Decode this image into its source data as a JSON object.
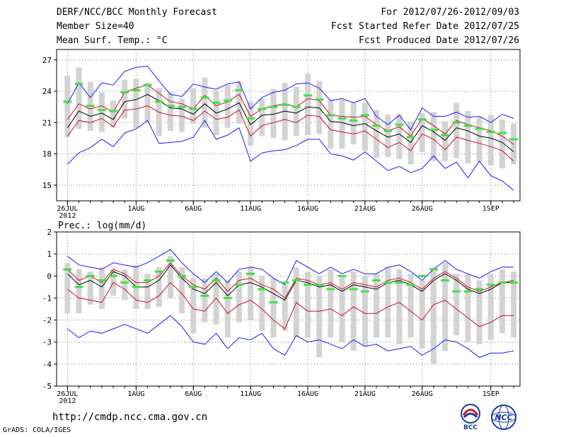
{
  "header": {
    "title": "DERF/NCC/BCC Monthly Forecast",
    "member_size": "Member Size=40",
    "variable": "Mean Surf. Temp.: °C",
    "period": "For 2012/07/26-2012/09/03",
    "started": "Fcst Started Refer Date 2012/07/25",
    "produced": "Fcst Produced Date 2012/07/26"
  },
  "footer": {
    "url": "http://cmdp.ncc.cma.gov.cn",
    "credit": "GrADS: COLA/IGES",
    "logo_bcc_text": "BCC",
    "logo_ncc_text": "NCC"
  },
  "colors": {
    "box": "#d3d3d3",
    "mean": "#000000",
    "spread": "#c8102e",
    "extreme": "#1a1aff",
    "marker": "#44e044"
  },
  "chart_data": [
    {
      "type": "line",
      "title": "Mean Surf. Temp.: °C",
      "x": [
        "Jul 26",
        "Jul 27",
        "Jul 28",
        "Jul 29",
        "Jul 30",
        "Jul 31",
        "Aug 1",
        "Aug 2",
        "Aug 3",
        "Aug 4",
        "Aug 5",
        "Aug 6",
        "Aug 7",
        "Aug 8",
        "Aug 9",
        "Aug 10",
        "Aug 11",
        "Aug 12",
        "Aug 13",
        "Aug 14",
        "Aug 15",
        "Aug 16",
        "Aug 17",
        "Aug 18",
        "Aug 19",
        "Aug 20",
        "Aug 21",
        "Aug 22",
        "Aug 23",
        "Aug 24",
        "Aug 25",
        "Aug 26",
        "Aug 27",
        "Aug 28",
        "Aug 29",
        "Aug 30",
        "Aug 31",
        "Sep 1",
        "Sep 2",
        "Sep 3"
      ],
      "xticks": [
        "26JUL",
        "1AUG",
        "6AUG",
        "11AUG",
        "16AUG",
        "21AUG",
        "26AUG",
        "1SEP"
      ],
      "xtick_index": [
        0,
        6,
        11,
        16,
        21,
        26,
        31,
        37
      ],
      "xsublabel": "2012",
      "ylim": [
        13.5,
        28
      ],
      "yticks": [
        15,
        18,
        21,
        24,
        27
      ],
      "mean": [
        20.5,
        22.1,
        21.6,
        21.9,
        21.3,
        23.0,
        23.2,
        23.7,
        23.1,
        22.4,
        22.3,
        21.8,
        22.8,
        21.9,
        22.3,
        22.9,
        20.8,
        21.7,
        21.8,
        22.1,
        21.9,
        22.5,
        22.4,
        21.1,
        21.0,
        20.7,
        20.9,
        20.2,
        19.6,
        19.9,
        19.1,
        20.7,
        20.1,
        19.3,
        20.5,
        20.2,
        19.7,
        19.5,
        19.1,
        18.2
      ],
      "p_high": [
        21.3,
        22.8,
        22.3,
        22.6,
        22.0,
        23.9,
        24.3,
        24.6,
        23.8,
        23.0,
        22.8,
        22.3,
        23.6,
        22.6,
        23.0,
        23.7,
        21.6,
        22.3,
        22.6,
        22.8,
        22.5,
        23.3,
        23.1,
        21.7,
        21.6,
        21.5,
        21.6,
        20.8,
        20.2,
        20.6,
        19.7,
        21.4,
        20.7,
        19.9,
        21.2,
        20.8,
        20.5,
        20.2,
        19.7,
        18.9
      ],
      "p_low": [
        19.7,
        21.2,
        21.0,
        21.4,
        20.6,
        22.2,
        22.3,
        22.6,
        22.0,
        21.7,
        21.6,
        21.2,
        22.1,
        21.3,
        21.5,
        22.2,
        19.7,
        20.7,
        21.0,
        21.3,
        21.0,
        21.7,
        21.6,
        20.3,
        20.1,
        19.9,
        20.2,
        19.4,
        18.6,
        19.1,
        18.3,
        19.9,
        19.4,
        18.4,
        19.6,
        19.3,
        19.0,
        18.7,
        18.3,
        17.3
      ],
      "max": [
        22.8,
        24.8,
        23.4,
        24.8,
        24.6,
        25.9,
        26.3,
        26.4,
        25.0,
        23.7,
        23.5,
        24.7,
        24.4,
        24.2,
        24.7,
        24.9,
        22.3,
        23.4,
        23.9,
        24.1,
        24.7,
        24.8,
        24.3,
        23.1,
        23.3,
        22.9,
        23.3,
        21.6,
        20.8,
        21.7,
        20.3,
        22.4,
        21.6,
        21.6,
        22.0,
        21.5,
        21.6,
        21.0,
        21.8,
        21.4
      ],
      "min": [
        17.0,
        18.1,
        18.6,
        19.4,
        18.7,
        20.0,
        20.4,
        21.2,
        19.0,
        19.1,
        19.2,
        19.6,
        21.2,
        19.4,
        19.8,
        20.5,
        17.3,
        18.1,
        18.3,
        18.4,
        18.8,
        19.4,
        19.4,
        18.0,
        17.8,
        17.4,
        18.2,
        17.3,
        16.4,
        16.8,
        16.2,
        16.6,
        17.8,
        16.6,
        17.2,
        15.7,
        17.3,
        15.9,
        15.4,
        14.5
      ],
      "box_high": [
        25.5,
        26.3,
        24.9,
        23.9,
        23.1,
        25.1,
        25.2,
        24.8,
        24.3,
        23.9,
        23.3,
        24.3,
        25.3,
        24.1,
        24.6,
        25.0,
        23.0,
        23.3,
        24.2,
        24.8,
        24.4,
        25.7,
        25.0,
        23.2,
        23.2,
        22.9,
        22.9,
        22.2,
        21.8,
        21.8,
        21.1,
        21.9,
        22.0,
        21.1,
        22.9,
        22.1,
        21.5,
        21.7,
        21.3,
        20.9
      ],
      "box_low": [
        19.6,
        20.4,
        20.2,
        20.1,
        20.5,
        21.4,
        20.5,
        21.1,
        19.7,
        20.2,
        20.1,
        20.9,
        20.5,
        19.8,
        20.5,
        20.9,
        18.8,
        19.7,
        19.5,
        19.3,
        19.7,
        19.8,
        19.9,
        18.5,
        18.5,
        18.9,
        18.3,
        17.6,
        17.7,
        17.5,
        17.0,
        18.2,
        17.3,
        17.3,
        17.6,
        17.1,
        17.2,
        16.9,
        16.6,
        17.0
      ],
      "markers": [
        23.0,
        24.7,
        22.6,
        22.2,
        22.1,
        23.9,
        24.1,
        24.6,
        23.0,
        22.6,
        22.5,
        22.3,
        23.4,
        22.9,
        23.1,
        24.1,
        21.4,
        22.3,
        22.5,
        22.7,
        22.5,
        23.6,
        23.2,
        21.7,
        21.4,
        21.2,
        21.7,
        20.7,
        20.2,
        20.8,
        19.6,
        21.3,
        20.3,
        19.8,
        21.0,
        20.7,
        20.4,
        20.1,
        20.0,
        19.4
      ]
    },
    {
      "type": "line",
      "title": "Prec.: log(mm/d)",
      "x": [
        "Jul 26",
        "Jul 27",
        "Jul 28",
        "Jul 29",
        "Jul 30",
        "Jul 31",
        "Aug 1",
        "Aug 2",
        "Aug 3",
        "Aug 4",
        "Aug 5",
        "Aug 6",
        "Aug 7",
        "Aug 8",
        "Aug 9",
        "Aug 10",
        "Aug 11",
        "Aug 12",
        "Aug 13",
        "Aug 14",
        "Aug 15",
        "Aug 16",
        "Aug 17",
        "Aug 18",
        "Aug 19",
        "Aug 20",
        "Aug 21",
        "Aug 22",
        "Aug 23",
        "Aug 24",
        "Aug 25",
        "Aug 26",
        "Aug 27",
        "Aug 28",
        "Aug 29",
        "Aug 30",
        "Aug 31",
        "Sep 1",
        "Sep 2",
        "Sep 3"
      ],
      "xticks": [
        "26JUL",
        "1AUG",
        "6AUG",
        "11AUG",
        "16AUG",
        "21AUG",
        "26AUG",
        "1SEP"
      ],
      "xtick_index": [
        0,
        6,
        11,
        16,
        21,
        26,
        31,
        37
      ],
      "xsublabel": "2012",
      "ylim": [
        -5,
        2
      ],
      "yticks": [
        -5,
        -4,
        -3,
        -2,
        -1,
        0,
        1,
        2
      ],
      "mean": [
        0.1,
        -0.4,
        -0.2,
        -0.5,
        0.2,
        0.0,
        -0.5,
        -0.5,
        -0.2,
        0.5,
        -0.1,
        -0.6,
        -0.8,
        -0.3,
        -0.9,
        -0.4,
        -0.3,
        -0.5,
        -0.8,
        -1.1,
        -0.2,
        -0.3,
        -0.5,
        -0.4,
        -0.7,
        -0.4,
        -0.5,
        -0.6,
        -0.3,
        -0.2,
        -0.4,
        -0.7,
        -0.2,
        0.1,
        -0.2,
        -0.6,
        -0.8,
        -0.6,
        -0.3,
        -0.3
      ],
      "p_high": [
        0.3,
        -0.2,
        0.0,
        -0.3,
        0.3,
        0.1,
        -0.3,
        -0.3,
        0.0,
        0.6,
        0.0,
        -0.4,
        -0.6,
        -0.1,
        -0.7,
        -0.2,
        -0.1,
        -0.4,
        -0.6,
        -1.0,
        -0.1,
        -0.2,
        -0.4,
        -0.3,
        -0.6,
        -0.3,
        -0.4,
        -0.5,
        -0.2,
        -0.1,
        -0.3,
        -0.6,
        -0.1,
        0.2,
        -0.1,
        -0.5,
        -0.7,
        -0.5,
        -0.3,
        -0.2
      ],
      "p_low": [
        -0.6,
        -1.0,
        -1.1,
        -1.2,
        -0.3,
        -0.6,
        -1.1,
        -1.2,
        -0.9,
        -0.3,
        -0.8,
        -1.5,
        -1.6,
        -1.0,
        -1.7,
        -1.3,
        -1.1,
        -1.5,
        -2.0,
        -2.4,
        -1.2,
        -1.6,
        -1.6,
        -1.5,
        -1.8,
        -1.4,
        -1.7,
        -1.7,
        -1.4,
        -1.2,
        -1.6,
        -2.0,
        -1.3,
        -1.1,
        -1.5,
        -1.9,
        -2.3,
        -2.1,
        -1.8,
        -1.8
      ],
      "max": [
        0.9,
        0.5,
        0.4,
        0.3,
        0.6,
        0.5,
        0.4,
        0.6,
        0.9,
        1.2,
        0.6,
        0.1,
        -0.3,
        0.2,
        -0.3,
        0.3,
        0.4,
        0.3,
        -0.1,
        -0.4,
        0.7,
        0.4,
        0.1,
        0.4,
        0.1,
        0.3,
        0.1,
        0.1,
        0.4,
        0.5,
        0.2,
        -0.2,
        0.3,
        0.7,
        0.3,
        0.1,
        -0.1,
        0.2,
        0.4,
        0.4
      ],
      "min": [
        -2.4,
        -2.8,
        -2.5,
        -2.6,
        -2.4,
        -2.2,
        -2.4,
        -2.6,
        -2.2,
        -1.8,
        -2.3,
        -3.0,
        -3.1,
        -2.6,
        -3.3,
        -2.8,
        -2.9,
        -2.6,
        -3.3,
        -3.6,
        -2.7,
        -3.0,
        -2.9,
        -3.1,
        -3.3,
        -2.9,
        -3.2,
        -3.1,
        -3.4,
        -3.3,
        -3.2,
        -3.6,
        -3.3,
        -2.9,
        -3.0,
        -3.3,
        -3.7,
        -3.5,
        -3.5,
        -3.4
      ],
      "box_high": [
        0.6,
        0.3,
        0.2,
        0.4,
        0.3,
        0.3,
        0.5,
        0.1,
        0.4,
        0.9,
        0.4,
        -0.1,
        -0.1,
        0.1,
        -0.2,
        0.2,
        0.4,
        0.0,
        -0.1,
        -0.4,
        0.4,
        0.2,
        0.0,
        0.3,
        0.0,
        0.2,
        0.0,
        0.1,
        0.4,
        0.3,
        0.1,
        -0.2,
        0.4,
        0.6,
        0.1,
        0.1,
        -0.2,
        0.1,
        0.3,
        0.2
      ],
      "box_low": [
        -1.7,
        -1.7,
        -1.3,
        -1.5,
        -0.9,
        -1.1,
        -1.5,
        -1.5,
        -1.4,
        -1.0,
        -1.7,
        -2.6,
        -2.1,
        -2.2,
        -2.8,
        -2.1,
        -2.0,
        -2.5,
        -2.8,
        -2.5,
        -2.8,
        -2.8,
        -3.7,
        -2.8,
        -3.0,
        -3.4,
        -3.2,
        -2.8,
        -2.8,
        -3.1,
        -2.8,
        -3.3,
        -4.0,
        -3.4,
        -2.7,
        -3.0,
        -3.1,
        -2.9,
        -2.6,
        -2.8
      ],
      "markers": [
        0.3,
        -0.5,
        0.0,
        -0.2,
        0.0,
        -0.3,
        -0.5,
        -0.2,
        0.2,
        0.7,
        0.0,
        -0.5,
        -0.9,
        -0.2,
        -1.0,
        -0.4,
        0.1,
        -0.6,
        -1.2,
        -0.3,
        -0.2,
        -0.4,
        -0.4,
        -0.6,
        0.0,
        -0.6,
        -0.7,
        -0.2,
        -0.3,
        -0.3,
        -0.4,
        0.0,
        0.3,
        -0.2,
        -0.7,
        -0.7,
        -0.6,
        -0.4,
        -0.3,
        -0.3
      ]
    }
  ]
}
